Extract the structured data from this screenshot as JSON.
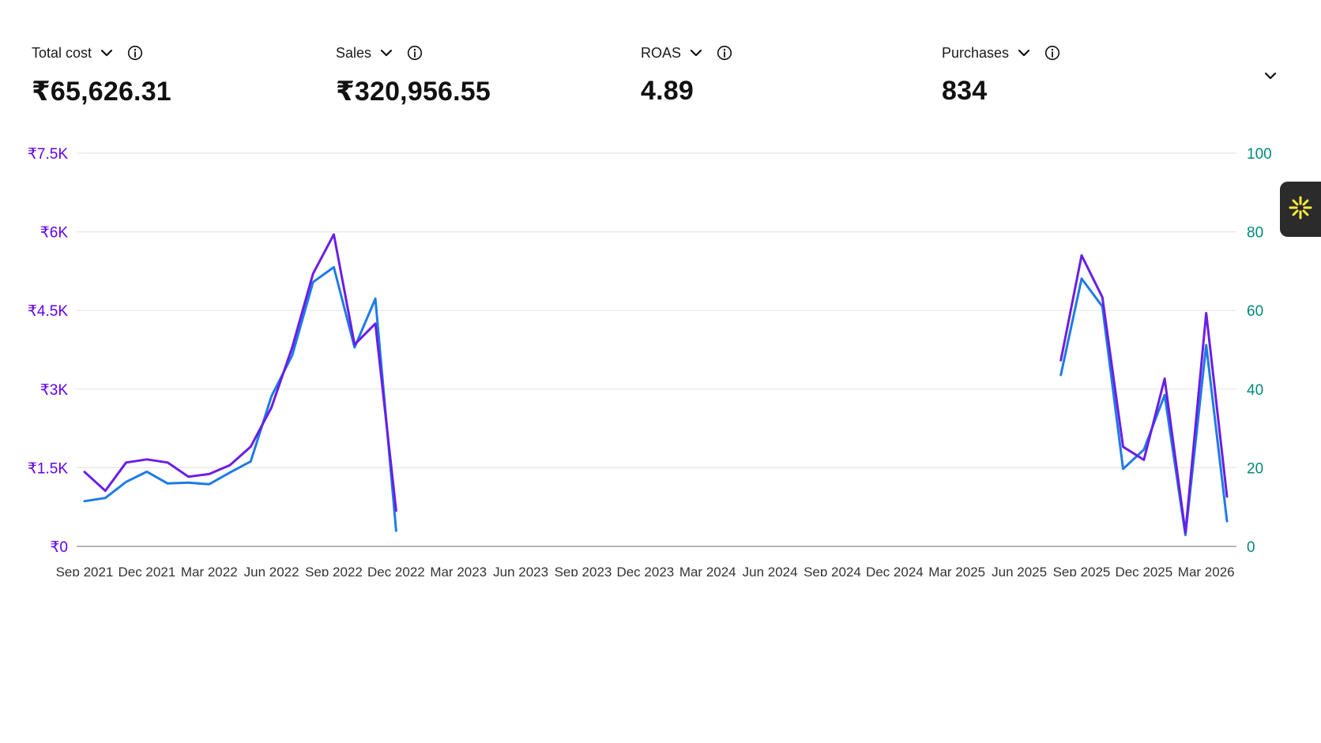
{
  "metrics": [
    {
      "label": "Total cost",
      "value": "₹65,626.31"
    },
    {
      "label": "Sales",
      "value": "₹320,956.55"
    },
    {
      "label": "ROAS",
      "value": "4.89"
    },
    {
      "label": "Purchases",
      "value": "834"
    }
  ],
  "icons": {
    "metric_dropdown": "chevron-down-icon",
    "metric_info": "info-icon",
    "collapse": "chevron-down-icon",
    "assistant": "sparkle-icon"
  },
  "colors": {
    "total_cost_line": "#6a1ee6",
    "purchases_line": "#1e7be6",
    "left_axis": "#6200ea",
    "right_axis": "#00897b",
    "assistant_accent": "#ffeb3b"
  },
  "chart_data": {
    "type": "line",
    "months": [
      "Sep 2021",
      "Oct 2021",
      "Nov 2021",
      "Dec 2021",
      "Jan 2022",
      "Feb 2022",
      "Mar 2022",
      "Apr 2022",
      "May 2022",
      "Jun 2022",
      "Jul 2022",
      "Aug 2022",
      "Sep 2022",
      "Oct 2022",
      "Nov 2022",
      "Dec 2022",
      "Jan 2023",
      "Feb 2023",
      "Mar 2023",
      "Apr 2023",
      "May 2023",
      "Jun 2023",
      "Jul 2023",
      "Aug 2023",
      "Sep 2023",
      "Oct 2023",
      "Nov 2023",
      "Dec 2023",
      "Jan 2024",
      "Feb 2024",
      "Mar 2024",
      "Apr 2024",
      "May 2024",
      "Jun 2024",
      "Jul 2024",
      "Aug 2024",
      "Sep 2024",
      "Oct 2024",
      "Nov 2024",
      "Dec 2024",
      "Jan 2025",
      "Feb 2025",
      "Mar 2025",
      "Apr 2025",
      "May 2025",
      "Jun 2025",
      "Jul 2025",
      "Aug 2025",
      "Sep 2025",
      "Oct 2025",
      "Nov 2025",
      "Dec 2025",
      "Jan 2026",
      "Feb 2026",
      "Mar 2026",
      "Apr 2026"
    ],
    "xtick_labels": [
      "Sep 2021",
      "Dec 2021",
      "Mar 2022",
      "Jun 2022",
      "Sep 2022",
      "Dec 2022",
      "Mar 2023",
      "Jun 2023",
      "Sep 2023",
      "Dec 2023",
      "Mar 2024",
      "Jun 2024",
      "Sep 2024",
      "Dec 2024",
      "Mar 2025",
      "Jun 2025",
      "Sep 2025",
      "Dec 2025",
      "Mar 2026"
    ],
    "xtick_step": 3,
    "y_left": {
      "ticks": [
        "₹0",
        "₹1.5K",
        "₹3K",
        "₹4.5K",
        "₹6K",
        "₹7.5K"
      ],
      "range": [
        0,
        7500
      ]
    },
    "y_right": {
      "ticks": [
        "0",
        "20",
        "40",
        "60",
        "80",
        "100"
      ],
      "range": [
        0,
        100
      ]
    },
    "grid": true,
    "series": [
      {
        "key": "total_cost",
        "axis": "left",
        "segments": [
          {
            "start": "Sep 2021",
            "values": [
              1420,
              1060,
              1600,
              1660,
              1600,
              1330,
              1380,
              1550,
              1900,
              2650,
              3800,
              5200,
              5950,
              3850,
              4250,
              680
            ]
          },
          {
            "start": "Aug 2025",
            "values": [
              3550,
              5550,
              4750,
              1900,
              1650,
              3200,
              260,
              4450,
              950
            ]
          }
        ]
      },
      {
        "key": "purchases",
        "axis": "right",
        "segments": [
          {
            "start": "Sep 2021",
            "values": [
              11.5,
              12.3,
              16.4,
              19.0,
              16.0,
              16.2,
              15.8,
              18.8,
              21.6,
              38.2,
              48.6,
              67.2,
              71.0,
              50.6,
              63.0,
              4.0
            ]
          },
          {
            "start": "Aug 2025",
            "values": [
              43.6,
              68.1,
              61.0,
              19.7,
              24.6,
              38.5,
              2.9,
              51.2,
              6.4
            ]
          }
        ]
      }
    ]
  }
}
